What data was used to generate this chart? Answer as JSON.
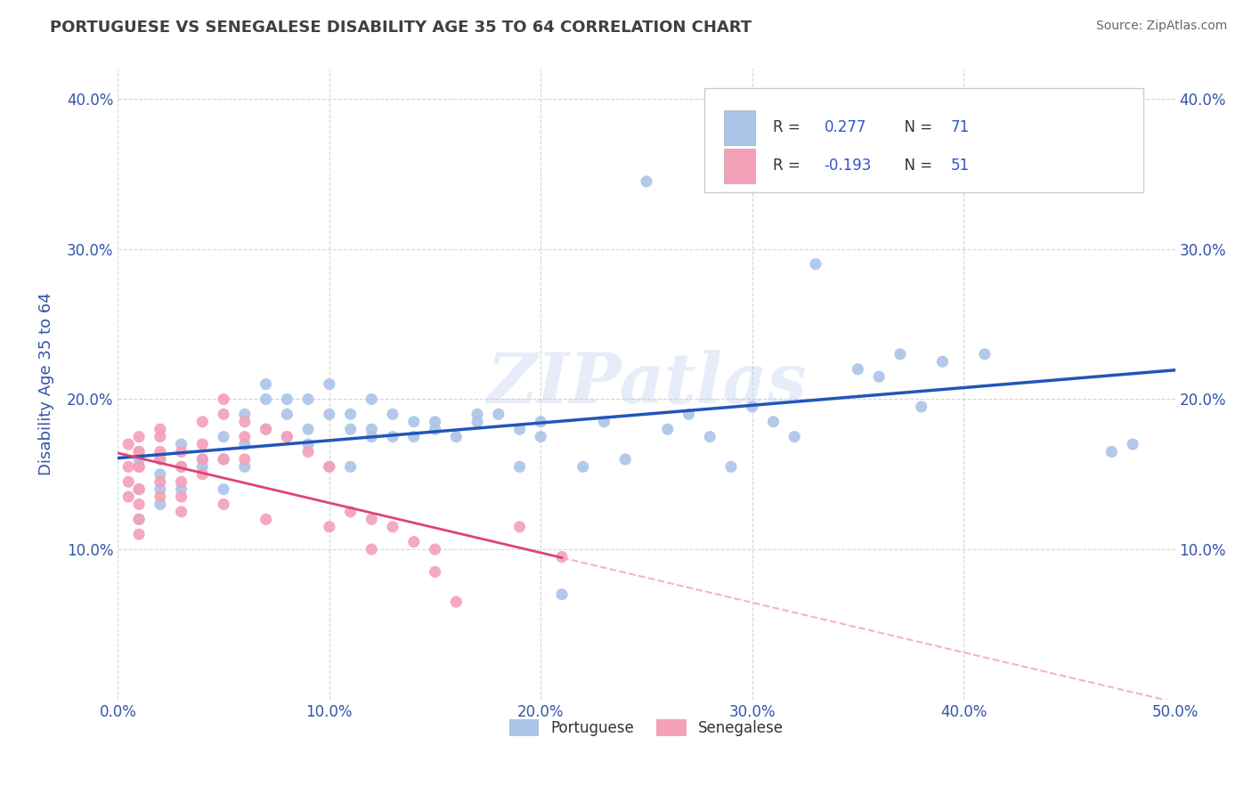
{
  "title": "PORTUGUESE VS SENEGALESE DISABILITY AGE 35 TO 64 CORRELATION CHART",
  "source": "Source: ZipAtlas.com",
  "ylabel": "Disability Age 35 to 64",
  "xlim": [
    0.0,
    0.5
  ],
  "ylim": [
    0.0,
    0.42
  ],
  "xticks": [
    0.0,
    0.1,
    0.2,
    0.3,
    0.4,
    0.5
  ],
  "xticklabels": [
    "0.0%",
    "10.0%",
    "20.0%",
    "30.0%",
    "40.0%",
    "50.0%"
  ],
  "yticks": [
    0.0,
    0.1,
    0.2,
    0.3,
    0.4
  ],
  "yticklabels": [
    "",
    "10.0%",
    "20.0%",
    "30.0%",
    "40.0%"
  ],
  "legend_r_blue": "0.277",
  "legend_n_blue": "71",
  "legend_r_pink": "-0.193",
  "legend_n_pink": "51",
  "blue_color": "#aac4e8",
  "pink_color": "#f4a0b8",
  "blue_line_color": "#2255bb",
  "pink_line_color": "#dd4477",
  "pink_line_dashed_color": "#f4a0b8",
  "watermark": "ZIPatlas",
  "portuguese_points": [
    [
      0.01,
      0.14
    ],
    [
      0.01,
      0.16
    ],
    [
      0.01,
      0.12
    ],
    [
      0.02,
      0.14
    ],
    [
      0.02,
      0.15
    ],
    [
      0.02,
      0.16
    ],
    [
      0.02,
      0.13
    ],
    [
      0.03,
      0.155
    ],
    [
      0.03,
      0.17
    ],
    [
      0.03,
      0.14
    ],
    [
      0.04,
      0.155
    ],
    [
      0.04,
      0.16
    ],
    [
      0.05,
      0.14
    ],
    [
      0.05,
      0.16
    ],
    [
      0.05,
      0.175
    ],
    [
      0.06,
      0.17
    ],
    [
      0.06,
      0.155
    ],
    [
      0.06,
      0.19
    ],
    [
      0.07,
      0.18
    ],
    [
      0.07,
      0.2
    ],
    [
      0.07,
      0.21
    ],
    [
      0.08,
      0.19
    ],
    [
      0.08,
      0.175
    ],
    [
      0.08,
      0.2
    ],
    [
      0.09,
      0.17
    ],
    [
      0.09,
      0.18
    ],
    [
      0.09,
      0.2
    ],
    [
      0.1,
      0.19
    ],
    [
      0.1,
      0.155
    ],
    [
      0.1,
      0.21
    ],
    [
      0.11,
      0.155
    ],
    [
      0.11,
      0.18
    ],
    [
      0.11,
      0.19
    ],
    [
      0.12,
      0.175
    ],
    [
      0.12,
      0.2
    ],
    [
      0.12,
      0.18
    ],
    [
      0.13,
      0.175
    ],
    [
      0.13,
      0.19
    ],
    [
      0.14,
      0.185
    ],
    [
      0.14,
      0.175
    ],
    [
      0.15,
      0.18
    ],
    [
      0.15,
      0.185
    ],
    [
      0.16,
      0.175
    ],
    [
      0.17,
      0.185
    ],
    [
      0.17,
      0.19
    ],
    [
      0.18,
      0.19
    ],
    [
      0.19,
      0.155
    ],
    [
      0.19,
      0.18
    ],
    [
      0.2,
      0.185
    ],
    [
      0.2,
      0.175
    ],
    [
      0.21,
      0.07
    ],
    [
      0.22,
      0.155
    ],
    [
      0.23,
      0.185
    ],
    [
      0.24,
      0.16
    ],
    [
      0.25,
      0.345
    ],
    [
      0.26,
      0.18
    ],
    [
      0.27,
      0.19
    ],
    [
      0.28,
      0.175
    ],
    [
      0.29,
      0.155
    ],
    [
      0.3,
      0.195
    ],
    [
      0.31,
      0.185
    ],
    [
      0.32,
      0.175
    ],
    [
      0.33,
      0.29
    ],
    [
      0.35,
      0.22
    ],
    [
      0.36,
      0.215
    ],
    [
      0.37,
      0.23
    ],
    [
      0.38,
      0.195
    ],
    [
      0.39,
      0.225
    ],
    [
      0.41,
      0.23
    ],
    [
      0.47,
      0.165
    ],
    [
      0.48,
      0.17
    ]
  ],
  "senegalese_points": [
    [
      0.005,
      0.17
    ],
    [
      0.005,
      0.155
    ],
    [
      0.005,
      0.145
    ],
    [
      0.005,
      0.135
    ],
    [
      0.01,
      0.165
    ],
    [
      0.01,
      0.155
    ],
    [
      0.01,
      0.14
    ],
    [
      0.01,
      0.13
    ],
    [
      0.01,
      0.12
    ],
    [
      0.01,
      0.11
    ],
    [
      0.01,
      0.155
    ],
    [
      0.01,
      0.165
    ],
    [
      0.01,
      0.175
    ],
    [
      0.02,
      0.175
    ],
    [
      0.02,
      0.16
    ],
    [
      0.02,
      0.145
    ],
    [
      0.02,
      0.135
    ],
    [
      0.02,
      0.18
    ],
    [
      0.02,
      0.165
    ],
    [
      0.03,
      0.165
    ],
    [
      0.03,
      0.155
    ],
    [
      0.03,
      0.145
    ],
    [
      0.03,
      0.135
    ],
    [
      0.03,
      0.125
    ],
    [
      0.04,
      0.17
    ],
    [
      0.04,
      0.16
    ],
    [
      0.04,
      0.15
    ],
    [
      0.04,
      0.185
    ],
    [
      0.05,
      0.19
    ],
    [
      0.05,
      0.16
    ],
    [
      0.05,
      0.13
    ],
    [
      0.05,
      0.2
    ],
    [
      0.06,
      0.185
    ],
    [
      0.06,
      0.175
    ],
    [
      0.06,
      0.16
    ],
    [
      0.07,
      0.18
    ],
    [
      0.07,
      0.12
    ],
    [
      0.08,
      0.175
    ],
    [
      0.09,
      0.165
    ],
    [
      0.1,
      0.155
    ],
    [
      0.1,
      0.115
    ],
    [
      0.11,
      0.125
    ],
    [
      0.12,
      0.12
    ],
    [
      0.12,
      0.1
    ],
    [
      0.13,
      0.115
    ],
    [
      0.14,
      0.105
    ],
    [
      0.15,
      0.1
    ],
    [
      0.15,
      0.085
    ],
    [
      0.16,
      0.065
    ],
    [
      0.19,
      0.115
    ],
    [
      0.21,
      0.095
    ]
  ],
  "grid_color": "#cccccc",
  "background_color": "#ffffff",
  "title_color": "#404040",
  "axis_label_color": "#3355aa",
  "tick_color": "#3355aa"
}
